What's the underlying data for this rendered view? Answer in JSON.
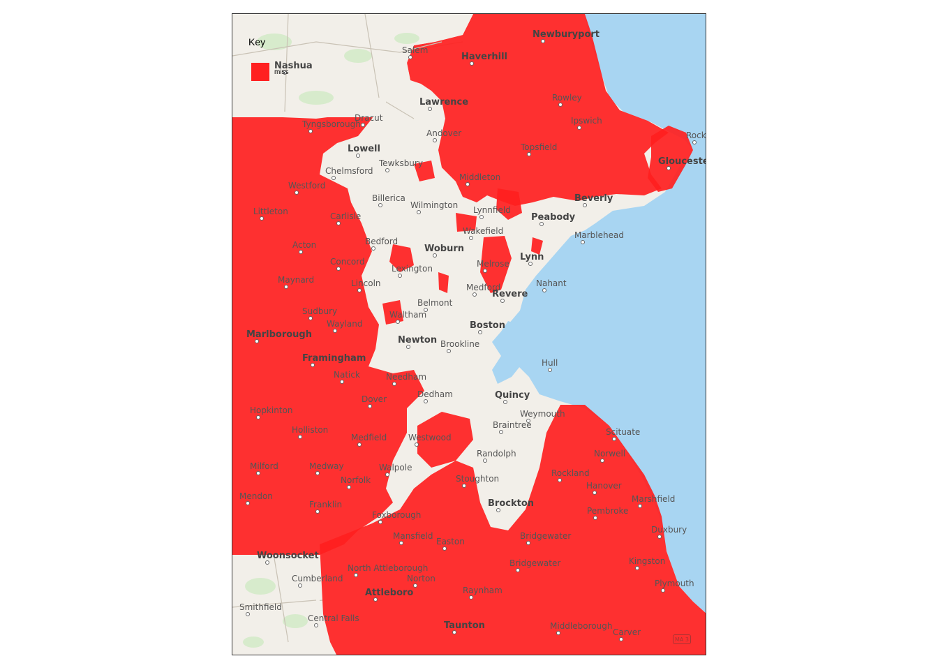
{
  "legend": {
    "title": "Key",
    "items": [
      {
        "label": "miss",
        "color": "#ff2020"
      }
    ]
  },
  "colors": {
    "water": "#a8d5f2",
    "land": "#f2efe9",
    "overlay": "#ff2020",
    "green": "#d7ebcc"
  },
  "places": [
    {
      "id": "newburyport",
      "name": "Newburyport",
      "major": true
    },
    {
      "id": "salem-nh",
      "name": "Salem",
      "major": false
    },
    {
      "id": "haverhill",
      "name": "Haverhill",
      "major": true
    },
    {
      "id": "nashua",
      "name": "Nashua",
      "major": true
    },
    {
      "id": "lawrence",
      "name": "Lawrence",
      "major": true
    },
    {
      "id": "rowley",
      "name": "Rowley",
      "major": false
    },
    {
      "id": "tyngsborough",
      "name": "Tyngsborough",
      "major": false
    },
    {
      "id": "dracut",
      "name": "Dracut",
      "major": false
    },
    {
      "id": "andover",
      "name": "Andover",
      "major": false
    },
    {
      "id": "ipswich",
      "name": "Ipswich",
      "major": false
    },
    {
      "id": "rockport",
      "name": "Rockport",
      "major": false
    },
    {
      "id": "lowell",
      "name": "Lowell",
      "major": true
    },
    {
      "id": "topsfield",
      "name": "Topsfield",
      "major": false
    },
    {
      "id": "gloucester",
      "name": "Gloucester",
      "major": true
    },
    {
      "id": "tewksbury",
      "name": "Tewksbury",
      "major": false
    },
    {
      "id": "chelmsford",
      "name": "Chelmsford",
      "major": false
    },
    {
      "id": "westford",
      "name": "Westford",
      "major": false
    },
    {
      "id": "middleton",
      "name": "Middleton",
      "major": false
    },
    {
      "id": "beverly",
      "name": "Beverly",
      "major": true
    },
    {
      "id": "billerica",
      "name": "Billerica",
      "major": false
    },
    {
      "id": "wilmington",
      "name": "Wilmington",
      "major": false
    },
    {
      "id": "lynnfield",
      "name": "Lynnfield",
      "major": false
    },
    {
      "id": "littleton",
      "name": "Littleton",
      "major": false
    },
    {
      "id": "peabody",
      "name": "Peabody",
      "major": true
    },
    {
      "id": "carlisle",
      "name": "Carlisle",
      "major": false
    },
    {
      "id": "wakefield",
      "name": "Wakefield",
      "major": false
    },
    {
      "id": "marblehead",
      "name": "Marblehead",
      "major": false
    },
    {
      "id": "bedford",
      "name": "Bedford",
      "major": false
    },
    {
      "id": "acton",
      "name": "Acton",
      "major": false
    },
    {
      "id": "woburn",
      "name": "Woburn",
      "major": true
    },
    {
      "id": "lynn",
      "name": "Lynn",
      "major": true
    },
    {
      "id": "concord",
      "name": "Concord",
      "major": false
    },
    {
      "id": "melrose",
      "name": "Melrose",
      "major": false
    },
    {
      "id": "lexington",
      "name": "Lexington",
      "major": false
    },
    {
      "id": "maynard",
      "name": "Maynard",
      "major": false
    },
    {
      "id": "nahant",
      "name": "Nahant",
      "major": false
    },
    {
      "id": "lincoln",
      "name": "Lincoln",
      "major": false
    },
    {
      "id": "medford",
      "name": "Medford",
      "major": false
    },
    {
      "id": "revere",
      "name": "Revere",
      "major": true
    },
    {
      "id": "belmont",
      "name": "Belmont",
      "major": false
    },
    {
      "id": "sudbury",
      "name": "Sudbury",
      "major": false
    },
    {
      "id": "waltham",
      "name": "Waltham",
      "major": false
    },
    {
      "id": "boston",
      "name": "Boston",
      "major": true
    },
    {
      "id": "wayland",
      "name": "Wayland",
      "major": false
    },
    {
      "id": "marlborough",
      "name": "Marlborough",
      "major": true
    },
    {
      "id": "newton",
      "name": "Newton",
      "major": true
    },
    {
      "id": "brookline",
      "name": "Brookline",
      "major": false
    },
    {
      "id": "framingham",
      "name": "Framingham",
      "major": true
    },
    {
      "id": "hull",
      "name": "Hull",
      "major": false
    },
    {
      "id": "natick",
      "name": "Natick",
      "major": false
    },
    {
      "id": "needham",
      "name": "Needham",
      "major": false
    },
    {
      "id": "dover",
      "name": "Dover",
      "major": false
    },
    {
      "id": "dedham",
      "name": "Dedham",
      "major": false
    },
    {
      "id": "quincy",
      "name": "Quincy",
      "major": true
    },
    {
      "id": "hopkinton",
      "name": "Hopkinton",
      "major": false
    },
    {
      "id": "weymouth",
      "name": "Weymouth",
      "major": false
    },
    {
      "id": "braintree",
      "name": "Braintree",
      "major": false
    },
    {
      "id": "holliston",
      "name": "Holliston",
      "major": false
    },
    {
      "id": "scituate",
      "name": "Scituate",
      "major": false
    },
    {
      "id": "westwood",
      "name": "Westwood",
      "major": false
    },
    {
      "id": "medfield",
      "name": "Medfield",
      "major": false
    },
    {
      "id": "randolph",
      "name": "Randolph",
      "major": false
    },
    {
      "id": "norwell",
      "name": "Norwell",
      "major": false
    },
    {
      "id": "milford",
      "name": "Milford",
      "major": false
    },
    {
      "id": "medway",
      "name": "Medway",
      "major": false
    },
    {
      "id": "walpole",
      "name": "Walpole",
      "major": false
    },
    {
      "id": "rockland",
      "name": "Rockland",
      "major": false
    },
    {
      "id": "norfolk",
      "name": "Norfolk",
      "major": false
    },
    {
      "id": "stoughton",
      "name": "Stoughton",
      "major": false
    },
    {
      "id": "hanover",
      "name": "Hanover",
      "major": false
    },
    {
      "id": "mendon",
      "name": "Mendon",
      "major": false
    },
    {
      "id": "marshfield",
      "name": "Marshfield",
      "major": false
    },
    {
      "id": "franklin",
      "name": "Franklin",
      "major": false
    },
    {
      "id": "brockton",
      "name": "Brockton",
      "major": true
    },
    {
      "id": "pembroke",
      "name": "Pembroke",
      "major": false
    },
    {
      "id": "foxborough",
      "name": "Foxborough",
      "major": false
    },
    {
      "id": "duxbury",
      "name": "Duxbury",
      "major": false
    },
    {
      "id": "mansfield",
      "name": "Mansfield",
      "major": false
    },
    {
      "id": "bridgewater",
      "name": "Bridgewater",
      "major": false
    },
    {
      "id": "easton",
      "name": "Easton",
      "major": false
    },
    {
      "id": "woonsocket",
      "name": "Woonsocket",
      "major": true
    },
    {
      "id": "east-bridgewater",
      "name": "Bridgewater",
      "major": false
    },
    {
      "id": "north-attleborough",
      "name": "North Attleborough",
      "major": false
    },
    {
      "id": "kingston",
      "name": "Kingston",
      "major": false
    },
    {
      "id": "cumberland",
      "name": "Cumberland",
      "major": false
    },
    {
      "id": "norton",
      "name": "Norton",
      "major": false
    },
    {
      "id": "plymouth",
      "name": "Plymouth",
      "major": false
    },
    {
      "id": "attleboro",
      "name": "Attleboro",
      "major": true
    },
    {
      "id": "raynham",
      "name": "Raynham",
      "major": false
    },
    {
      "id": "smithfield",
      "name": "Smithfield",
      "major": false
    },
    {
      "id": "central-falls",
      "name": "Central Falls",
      "major": false
    },
    {
      "id": "taunton",
      "name": "Taunton",
      "major": true
    },
    {
      "id": "middleborough",
      "name": "Middleborough",
      "major": false
    },
    {
      "id": "carver",
      "name": "Carver",
      "major": false
    }
  ],
  "shield": "MA 3"
}
